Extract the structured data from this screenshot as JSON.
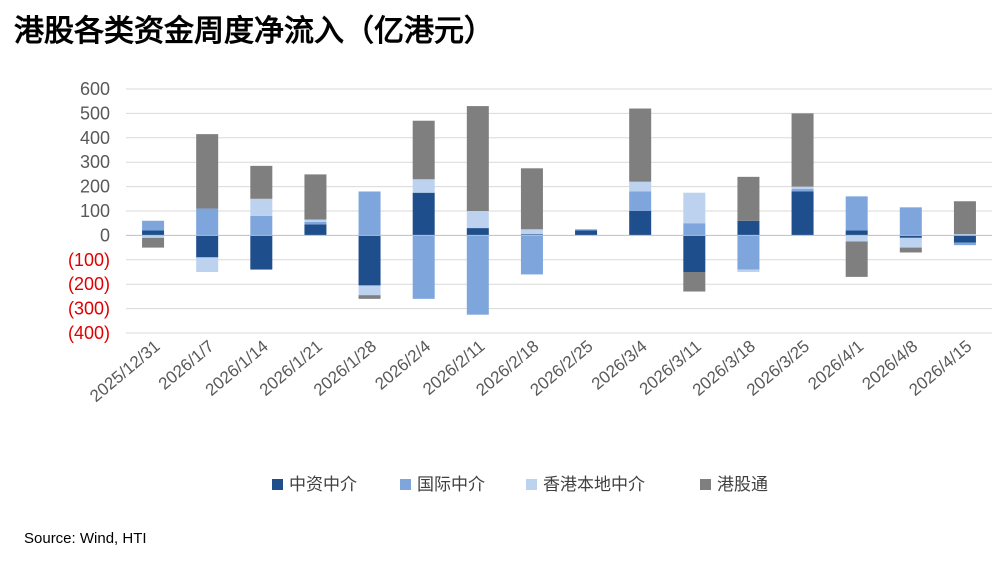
{
  "title": "港股各类资金周度净流入（亿港元）",
  "source": "Source: Wind, HTI",
  "colors": {
    "中资中介": "#1f4e8c",
    "国际中介": "#7ea6dc",
    "香港本地中介": "#bcd2ee",
    "港股通": "#7f7f7f",
    "negative_tick": "#e00000",
    "positive_tick": "#595959"
  },
  "chart_data": {
    "type": "bar",
    "stacked": true,
    "categories": [
      "2025/12/31",
      "2026/1/7",
      "2026/1/14",
      "2026/1/21",
      "2026/1/28",
      "2026/2/4",
      "2026/2/11",
      "2026/2/18",
      "2026/2/25",
      "2026/3/4",
      "2026/3/11",
      "2026/3/18",
      "2026/3/25",
      "2026/4/1",
      "2026/4/8",
      "2026/4/15"
    ],
    "series": [
      {
        "name": "中资中介",
        "values": [
          20,
          -90,
          -140,
          45,
          -205,
          175,
          30,
          5,
          20,
          100,
          -150,
          60,
          180,
          20,
          -10,
          -30
        ]
      },
      {
        "name": "国际中介",
        "values": [
          40,
          110,
          80,
          10,
          180,
          -260,
          -325,
          -160,
          5,
          80,
          50,
          -140,
          10,
          140,
          115,
          -10
        ]
      },
      {
        "name": "香港本地中介",
        "values": [
          -10,
          -60,
          70,
          10,
          -40,
          55,
          70,
          20,
          0,
          40,
          125,
          -10,
          10,
          -25,
          -40,
          5
        ]
      },
      {
        "name": "港股通",
        "values": [
          -40,
          305,
          135,
          185,
          -15,
          240,
          430,
          250,
          0,
          300,
          -80,
          180,
          300,
          -145,
          -20,
          135
        ]
      }
    ],
    "ylim": [
      -400,
      600
    ],
    "yticks": [
      {
        "value": 600,
        "label": "600"
      },
      {
        "value": 500,
        "label": "500"
      },
      {
        "value": 400,
        "label": "400"
      },
      {
        "value": 300,
        "label": "300"
      },
      {
        "value": 200,
        "label": "200"
      },
      {
        "value": 100,
        "label": "100"
      },
      {
        "value": 0,
        "label": "0"
      },
      {
        "value": -100,
        "label": "(100)"
      },
      {
        "value": -200,
        "label": "(200)"
      },
      {
        "value": -300,
        "label": "(300)"
      },
      {
        "value": -400,
        "label": "(400)"
      }
    ],
    "grid": true,
    "legend_position": "bottom"
  }
}
